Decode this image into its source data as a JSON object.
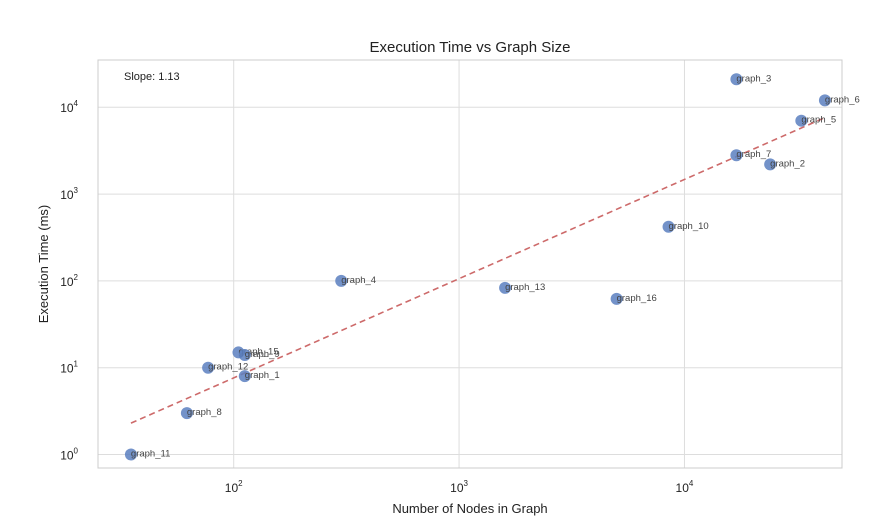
{
  "chart_data": {
    "type": "scatter",
    "title": "Execution Time vs Graph Size",
    "xlabel": "Number of Nodes in Graph",
    "ylabel": "Execution Time (ms)",
    "xscale": "log",
    "yscale": "log",
    "xlim": [
      25,
      50000
    ],
    "ylim": [
      0.7,
      35000
    ],
    "grid": true,
    "x_ticks": [
      {
        "base": "10",
        "exp": "2",
        "value": 100
      },
      {
        "base": "10",
        "exp": "3",
        "value": 1000
      },
      {
        "base": "10",
        "exp": "4",
        "value": 10000
      }
    ],
    "y_ticks": [
      {
        "base": "10",
        "exp": "0",
        "value": 1
      },
      {
        "base": "10",
        "exp": "1",
        "value": 10
      },
      {
        "base": "10",
        "exp": "2",
        "value": 100
      },
      {
        "base": "10",
        "exp": "3",
        "value": 1000
      },
      {
        "base": "10",
        "exp": "4",
        "value": 10000
      }
    ],
    "annotation": "Slope: 1.13",
    "points": [
      {
        "label": "graph_11",
        "x": 35,
        "y": 1.0
      },
      {
        "label": "graph_8",
        "x": 62,
        "y": 3.0
      },
      {
        "label": "graph_12",
        "x": 77,
        "y": 10
      },
      {
        "label": "graph_15",
        "x": 105,
        "y": 15
      },
      {
        "label": "graph_9",
        "x": 112,
        "y": 14
      },
      {
        "label": "graph_1",
        "x": 112,
        "y": 8
      },
      {
        "label": "graph_4",
        "x": 300,
        "y": 100
      },
      {
        "label": "graph_13",
        "x": 1600,
        "y": 83
      },
      {
        "label": "graph_16",
        "x": 5000,
        "y": 62
      },
      {
        "label": "graph_10",
        "x": 8500,
        "y": 420
      },
      {
        "label": "graph_3",
        "x": 17000,
        "y": 21000
      },
      {
        "label": "graph_7",
        "x": 17000,
        "y": 2800
      },
      {
        "label": "graph_2",
        "x": 24000,
        "y": 2200
      },
      {
        "label": "graph_5",
        "x": 33000,
        "y": 7000
      },
      {
        "label": "graph_6",
        "x": 42000,
        "y": 12000
      }
    ],
    "fit_line": {
      "x": [
        35,
        42000
      ],
      "y": [
        2.3,
        7600
      ]
    },
    "colors": {
      "points": "#5a7fbf",
      "fit_line": "#cd6a6a",
      "grid": "#dddddd",
      "spine": "#cccccc"
    }
  }
}
